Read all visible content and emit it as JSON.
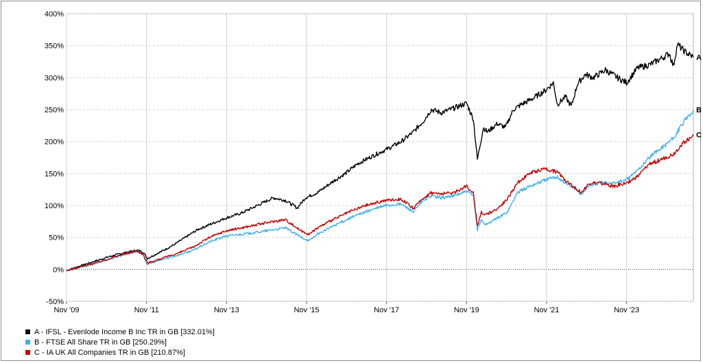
{
  "chart_data": {
    "type": "line",
    "ylim": [
      -50,
      400
    ],
    "yticks": [
      -50,
      0,
      50,
      100,
      150,
      200,
      250,
      300,
      350,
      400
    ],
    "ytick_labels": [
      "-50%",
      "0%",
      "50%",
      "100%",
      "150%",
      "200%",
      "250%",
      "300%",
      "350%",
      "400%"
    ],
    "xlim": [
      2009.83,
      2025.5
    ],
    "xticks": [
      2009.83,
      2011.83,
      2013.83,
      2015.83,
      2017.83,
      2019.83,
      2021.83,
      2023.83
    ],
    "xtick_labels": [
      "Nov '09",
      "Nov '11",
      "Nov '13",
      "Nov '15",
      "Nov '17",
      "Nov '19",
      "Nov '21",
      "Nov '23"
    ],
    "grid": true,
    "legend_position": "bottom-left",
    "series": [
      {
        "name": "A - IFSL - Evenlode Income B Inc TR in GB [332.01%]",
        "end_label": "A",
        "color": "#000000",
        "x": [
          2009.83,
          2010.0,
          2010.3,
          2010.6,
          2010.9,
          2011.2,
          2011.6,
          2011.75,
          2011.85,
          2012.2,
          2012.5,
          2012.8,
          2013.1,
          2013.4,
          2013.8,
          2014.2,
          2014.6,
          2015.0,
          2015.3,
          2015.6,
          2015.8,
          2016.1,
          2016.5,
          2016.8,
          2017.1,
          2017.5,
          2017.9,
          2018.2,
          2018.5,
          2018.75,
          2018.95,
          2019.2,
          2019.5,
          2019.83,
          2020.0,
          2020.1,
          2020.2,
          2020.25,
          2020.35,
          2020.6,
          2020.8,
          2021.0,
          2021.2,
          2021.5,
          2021.8,
          2022.0,
          2022.1,
          2022.3,
          2022.45,
          2022.6,
          2022.8,
          2023.0,
          2023.3,
          2023.6,
          2023.83,
          2024.1,
          2024.4,
          2024.7,
          2024.9,
          2025.0,
          2025.1,
          2025.3,
          2025.5
        ],
        "y": [
          -2,
          2,
          8,
          14,
          20,
          25,
          30,
          27,
          17,
          28,
          38,
          50,
          62,
          70,
          80,
          88,
          100,
          112,
          108,
          96,
          112,
          120,
          138,
          150,
          165,
          178,
          190,
          200,
          215,
          232,
          250,
          245,
          252,
          260,
          235,
          172,
          205,
          222,
          215,
          228,
          222,
          250,
          258,
          268,
          280,
          292,
          258,
          270,
          255,
          290,
          305,
          300,
          312,
          300,
          292,
          315,
          320,
          330,
          338,
          318,
          352,
          340,
          332
        ]
      },
      {
        "name": "B - FTSE All Share TR in GB [250.29%]",
        "end_label": "B",
        "color": "#3fb0ea",
        "x": [
          2009.83,
          2010.0,
          2010.3,
          2010.6,
          2010.9,
          2011.2,
          2011.6,
          2011.75,
          2011.85,
          2012.2,
          2012.6,
          2013.0,
          2013.4,
          2013.8,
          2014.2,
          2014.6,
          2015.0,
          2015.3,
          2015.7,
          2015.9,
          2016.1,
          2016.5,
          2016.9,
          2017.3,
          2017.8,
          2018.2,
          2018.5,
          2018.75,
          2018.95,
          2019.2,
          2019.5,
          2019.83,
          2020.0,
          2020.1,
          2020.2,
          2020.3,
          2020.6,
          2020.85,
          2021.1,
          2021.4,
          2021.8,
          2022.1,
          2022.3,
          2022.5,
          2022.7,
          2022.9,
          2023.2,
          2023.5,
          2023.83,
          2024.1,
          2024.4,
          2024.7,
          2025.0,
          2025.2,
          2025.5
        ],
        "y": [
          -2,
          0,
          5,
          10,
          16,
          22,
          28,
          22,
          8,
          15,
          22,
          30,
          43,
          52,
          55,
          58,
          62,
          65,
          50,
          45,
          55,
          68,
          80,
          90,
          100,
          102,
          90,
          108,
          115,
          112,
          115,
          122,
          115,
          62,
          78,
          70,
          80,
          90,
          120,
          130,
          140,
          145,
          135,
          128,
          118,
          132,
          135,
          135,
          140,
          155,
          175,
          190,
          205,
          225,
          250
        ]
      },
      {
        "name": "C - IA UK All Companies TR in GB [210.87%]",
        "end_label": "C",
        "color": "#c00000",
        "x": [
          2009.83,
          2010.0,
          2010.3,
          2010.6,
          2010.9,
          2011.2,
          2011.6,
          2011.75,
          2011.85,
          2012.2,
          2012.6,
          2013.0,
          2013.4,
          2013.8,
          2014.2,
          2014.6,
          2015.0,
          2015.3,
          2015.7,
          2015.9,
          2016.1,
          2016.5,
          2016.9,
          2017.3,
          2017.8,
          2018.2,
          2018.5,
          2018.75,
          2018.95,
          2019.2,
          2019.5,
          2019.83,
          2020.0,
          2020.1,
          2020.2,
          2020.3,
          2020.6,
          2020.85,
          2021.1,
          2021.4,
          2021.8,
          2022.1,
          2022.3,
          2022.5,
          2022.7,
          2022.9,
          2023.2,
          2023.5,
          2023.83,
          2024.1,
          2024.4,
          2024.7,
          2025.0,
          2025.2,
          2025.5
        ],
        "y": [
          -2,
          1,
          6,
          11,
          17,
          23,
          29,
          23,
          10,
          17,
          25,
          35,
          50,
          60,
          65,
          70,
          75,
          78,
          60,
          55,
          65,
          78,
          90,
          100,
          108,
          110,
          95,
          112,
          120,
          118,
          120,
          130,
          120,
          68,
          90,
          85,
          95,
          110,
          135,
          150,
          158,
          152,
          140,
          130,
          120,
          135,
          135,
          130,
          135,
          145,
          165,
          172,
          180,
          195,
          211
        ]
      }
    ]
  }
}
